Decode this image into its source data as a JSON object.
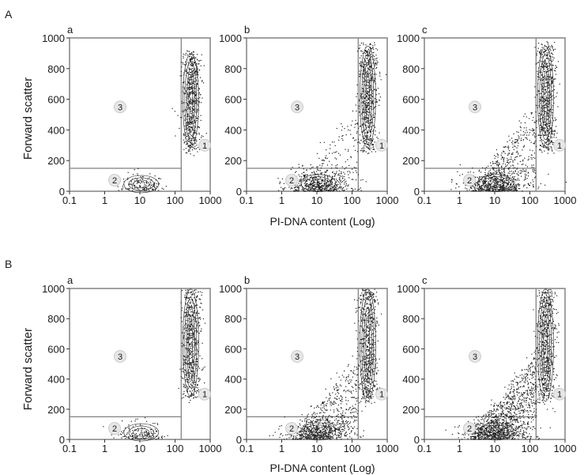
{
  "figure": {
    "ylabel": "Forward scatter",
    "xlabel": "PI-DNA content (Log)",
    "panel_labels": [
      "A",
      "B"
    ],
    "subpanel_labels": [
      "a",
      "b",
      "c"
    ],
    "region_labels": [
      "1",
      "2",
      "3"
    ],
    "y_ticks": [
      "0",
      "200",
      "400",
      "600",
      "800",
      "1000"
    ],
    "x_ticks": [
      "0.1",
      "1",
      "10",
      "100",
      "1000"
    ]
  },
  "colors": {
    "gate_line": "#8a8a8a",
    "dots": "#1e1e1e",
    "contour": "#3a3a3a"
  },
  "chart_data": [
    {
      "type": "scatter",
      "panel": "A",
      "subpanel": "a",
      "xscale": "log",
      "xlim": [
        0.1,
        1000
      ],
      "ylim": [
        0,
        1000
      ],
      "gates": {
        "x_threshold": 150,
        "y_threshold": 150
      },
      "events": {
        "apoptotic_spread": "none",
        "population_1": {
          "x": [
            130,
            600
          ],
          "y": [
            280,
            900
          ]
        },
        "population_2": {
          "x": [
            2,
            60
          ],
          "y": [
            0,
            140
          ]
        }
      }
    },
    {
      "type": "scatter",
      "panel": "A",
      "subpanel": "b",
      "xscale": "log",
      "xlim": [
        0.1,
        1000
      ],
      "ylim": [
        0,
        1000
      ],
      "gates": {
        "x_threshold": 150,
        "y_threshold": 150
      },
      "events": {
        "apoptotic_spread": "light",
        "population_1": {
          "x": [
            130,
            600
          ],
          "y": [
            280,
            950
          ]
        },
        "population_2": {
          "x": [
            1,
            120
          ],
          "y": [
            0,
            160
          ]
        }
      }
    },
    {
      "type": "scatter",
      "panel": "A",
      "subpanel": "c",
      "xscale": "log",
      "xlim": [
        0.1,
        1000
      ],
      "ylim": [
        0,
        1000
      ],
      "gates": {
        "x_threshold": 150,
        "y_threshold": 150
      },
      "events": {
        "apoptotic_spread": "moderate",
        "population_1": {
          "x": [
            130,
            600
          ],
          "y": [
            280,
            950
          ]
        },
        "population_2": {
          "x": [
            1,
            120
          ],
          "y": [
            0,
            160
          ]
        }
      }
    },
    {
      "type": "scatter",
      "panel": "B",
      "subpanel": "a",
      "xscale": "log",
      "xlim": [
        0.1,
        1000
      ],
      "ylim": [
        0,
        1000
      ],
      "gates": {
        "x_threshold": 150,
        "y_threshold": 150
      },
      "events": {
        "apoptotic_spread": "none",
        "population_1": {
          "x": [
            130,
            600
          ],
          "y": [
            280,
            1000
          ]
        },
        "population_2": {
          "x": [
            2,
            60
          ],
          "y": [
            0,
            140
          ]
        }
      }
    },
    {
      "type": "scatter",
      "panel": "B",
      "subpanel": "b",
      "xscale": "log",
      "xlim": [
        0.1,
        1000
      ],
      "ylim": [
        0,
        1000
      ],
      "gates": {
        "x_threshold": 150,
        "y_threshold": 150
      },
      "events": {
        "apoptotic_spread": "moderate",
        "population_1": {
          "x": [
            130,
            600
          ],
          "y": [
            250,
            1000
          ]
        },
        "population_2": {
          "x": [
            1,
            120
          ],
          "y": [
            0,
            160
          ]
        }
      }
    },
    {
      "type": "scatter",
      "panel": "B",
      "subpanel": "c",
      "xscale": "log",
      "xlim": [
        0.1,
        1000
      ],
      "ylim": [
        0,
        1000
      ],
      "gates": {
        "x_threshold": 150,
        "y_threshold": 150
      },
      "events": {
        "apoptotic_spread": "heavy",
        "population_1": {
          "x": [
            130,
            600
          ],
          "y": [
            250,
            1000
          ]
        },
        "population_2": {
          "x": [
            1,
            120
          ],
          "y": [
            0,
            160
          ]
        }
      }
    }
  ]
}
